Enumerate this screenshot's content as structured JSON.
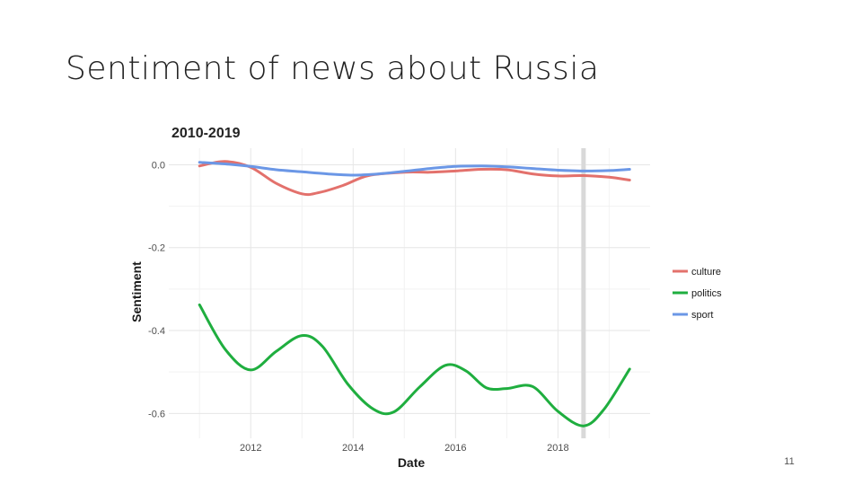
{
  "slide": {
    "title": "Sentiment of news about Russia",
    "page_number": "11"
  },
  "chart_data": {
    "type": "line",
    "title": "2010-2019",
    "xlabel": "Date",
    "ylabel": "Sentiment",
    "xlim": [
      2010.4,
      2019.8
    ],
    "ylim": [
      -0.66,
      0.04
    ],
    "x_ticks": [
      2012,
      2014,
      2016,
      2018
    ],
    "x_tick_labels": [
      "2012",
      "2014",
      "2016",
      "2018"
    ],
    "y_ticks": [
      0.0,
      -0.2,
      -0.4,
      -0.6
    ],
    "y_tick_labels": [
      "0.0",
      "-0.2",
      "-0.4",
      "-0.6"
    ],
    "grid": true,
    "legend_position": "right",
    "reference_line": {
      "x": 2018.5,
      "color": "#d9d9d9"
    },
    "series": [
      {
        "name": "culture",
        "color": "#e3716c",
        "x": [
          2011.0,
          2011.5,
          2012.0,
          2012.5,
          2013.0,
          2013.3,
          2013.8,
          2014.3,
          2015.0,
          2015.5,
          2016.0,
          2016.5,
          2017.0,
          2017.5,
          2018.0,
          2018.5,
          2019.0,
          2019.4
        ],
        "y": [
          -0.003,
          0.008,
          -0.006,
          -0.045,
          -0.07,
          -0.068,
          -0.05,
          -0.026,
          -0.018,
          -0.018,
          -0.015,
          -0.011,
          -0.012,
          -0.022,
          -0.027,
          -0.026,
          -0.03,
          -0.037
        ]
      },
      {
        "name": "politics",
        "color": "#1fae3f",
        "x": [
          2011.0,
          2011.5,
          2012.0,
          2012.5,
          2013.0,
          2013.4,
          2013.9,
          2014.4,
          2014.8,
          2015.3,
          2015.8,
          2016.2,
          2016.6,
          2017.0,
          2017.5,
          2018.0,
          2018.5,
          2018.9,
          2019.4
        ],
        "y": [
          -0.338,
          -0.445,
          -0.495,
          -0.45,
          -0.412,
          -0.438,
          -0.53,
          -0.59,
          -0.596,
          -0.536,
          -0.484,
          -0.497,
          -0.538,
          -0.54,
          -0.535,
          -0.595,
          -0.63,
          -0.59,
          -0.493
        ]
      },
      {
        "name": "sport",
        "color": "#6b97e6",
        "x": [
          2011.0,
          2011.5,
          2012.0,
          2012.5,
          2013.0,
          2013.5,
          2014.0,
          2014.5,
          2015.0,
          2015.5,
          2016.0,
          2016.5,
          2017.0,
          2017.5,
          2018.0,
          2018.5,
          2019.0,
          2019.4
        ],
        "y": [
          0.006,
          0.002,
          -0.004,
          -0.012,
          -0.017,
          -0.022,
          -0.025,
          -0.022,
          -0.016,
          -0.009,
          -0.004,
          -0.003,
          -0.005,
          -0.009,
          -0.013,
          -0.015,
          -0.014,
          -0.011
        ]
      }
    ]
  }
}
